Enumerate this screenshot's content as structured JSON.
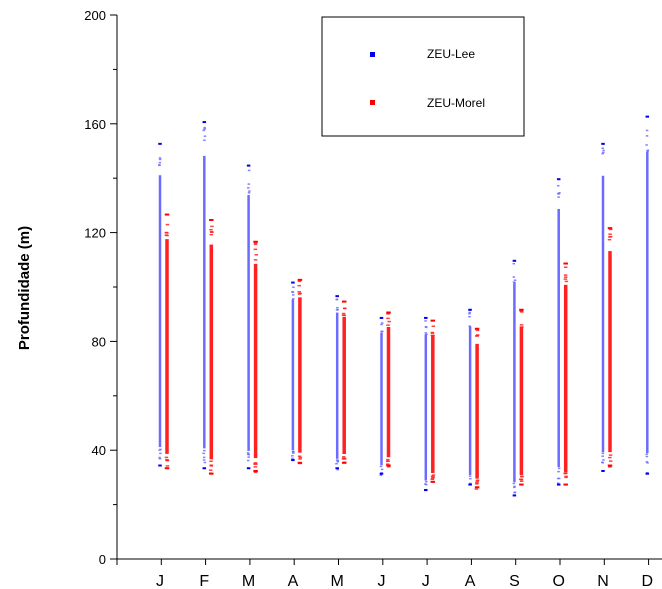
{
  "chart_data": {
    "type": "range",
    "ylabel": "Profundidade (m)",
    "xlabel": "",
    "ylim": [
      0,
      200
    ],
    "yticks": [
      0,
      40,
      80,
      120,
      160,
      200
    ],
    "grid": false,
    "legend_position": "top-right",
    "categories": [
      "J",
      "F",
      "M",
      "A",
      "M",
      "J",
      "J",
      "A",
      "S",
      "O",
      "N",
      "D"
    ],
    "series": [
      {
        "name": "ZEU-Lee",
        "color": "#6b6bff",
        "marker_color": "#0000ee",
        "ranges": [
          {
            "min": 34,
            "max": 153
          },
          {
            "min": 33,
            "max": 161
          },
          {
            "min": 33,
            "max": 145
          },
          {
            "min": 36,
            "max": 102
          },
          {
            "min": 33,
            "max": 97
          },
          {
            "min": 31,
            "max": 89
          },
          {
            "min": 25,
            "max": 89
          },
          {
            "min": 27,
            "max": 92
          },
          {
            "min": 23,
            "max": 110
          },
          {
            "min": 27,
            "max": 140
          },
          {
            "min": 32,
            "max": 153
          },
          {
            "min": 31,
            "max": 163
          }
        ]
      },
      {
        "name": "ZEU-Morel",
        "color": "#ff2020",
        "marker_color": "#ff0000",
        "ranges": [
          {
            "min": 33,
            "max": 127
          },
          {
            "min": 31,
            "max": 125
          },
          {
            "min": 32,
            "max": 117
          },
          {
            "min": 35,
            "max": 103
          },
          {
            "min": 35,
            "max": 95
          },
          {
            "min": 34,
            "max": 91
          },
          {
            "min": 28,
            "max": 88
          },
          {
            "min": 26,
            "max": 85
          },
          {
            "min": 27,
            "max": 92
          },
          {
            "min": 27,
            "max": 109
          },
          {
            "min": 34,
            "max": 122
          },
          null
        ]
      }
    ]
  }
}
